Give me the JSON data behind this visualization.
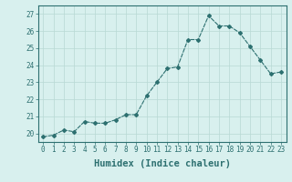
{
  "x": [
    0,
    1,
    2,
    3,
    4,
    5,
    6,
    7,
    8,
    9,
    10,
    11,
    12,
    13,
    14,
    15,
    16,
    17,
    18,
    19,
    20,
    21,
    22,
    23
  ],
  "y": [
    19.8,
    19.9,
    20.2,
    20.1,
    20.7,
    20.6,
    20.6,
    20.8,
    21.1,
    21.1,
    22.2,
    23.0,
    23.8,
    23.9,
    25.5,
    25.5,
    26.9,
    26.3,
    26.3,
    25.9,
    25.1,
    24.3,
    23.5,
    23.6
  ],
  "line_color": "#2d7070",
  "marker": "D",
  "marker_size": 2.0,
  "linewidth": 0.8,
  "xlabel": "Humidex (Indice chaleur)",
  "ylim": [
    19.5,
    27.5
  ],
  "yticks": [
    20,
    21,
    22,
    23,
    24,
    25,
    26,
    27
  ],
  "xticks": [
    0,
    1,
    2,
    3,
    4,
    5,
    6,
    7,
    8,
    9,
    10,
    11,
    12,
    13,
    14,
    15,
    16,
    17,
    18,
    19,
    20,
    21,
    22,
    23
  ],
  "xlim": [
    -0.5,
    23.5
  ],
  "bg_color": "#d8f0ee",
  "grid_color": "#b8d8d4",
  "tick_fontsize": 5.5,
  "xlabel_fontsize": 7.5
}
